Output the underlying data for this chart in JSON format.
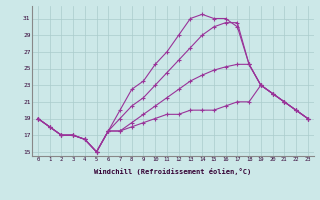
{
  "xlabel": "Windchill (Refroidissement éolien,°C)",
  "bg_color": "#cce8e8",
  "line_color": "#993399",
  "grid_color": "#aacccc",
  "xlim": [
    -0.5,
    23.5
  ],
  "ylim": [
    14.5,
    32.5
  ],
  "xticks": [
    0,
    1,
    2,
    3,
    4,
    5,
    6,
    7,
    8,
    9,
    10,
    11,
    12,
    13,
    14,
    15,
    16,
    17,
    18,
    19,
    20,
    21,
    22,
    23
  ],
  "yticks": [
    15,
    17,
    19,
    21,
    23,
    25,
    27,
    29,
    31
  ],
  "series": [
    [
      19,
      18,
      17,
      17,
      16.5,
      15,
      17.5,
      17.5,
      18.5,
      19.5,
      20.5,
      21.5,
      22.5,
      23.5,
      24.2,
      24.8,
      25.2,
      25.5,
      25.5,
      23,
      22,
      21,
      20,
      19
    ],
    [
      19,
      18,
      17,
      17,
      16.5,
      15,
      17.5,
      20,
      22.5,
      23.5,
      25.5,
      27,
      29,
      31,
      31.5,
      31,
      31,
      30,
      25.5,
      23,
      22,
      21,
      20,
      19
    ],
    [
      19,
      18,
      17,
      17,
      16.5,
      15,
      17.5,
      19,
      20.5,
      21.5,
      23,
      24.5,
      26,
      27.5,
      29,
      30,
      30.5,
      30.5,
      25.5,
      23,
      22,
      21,
      20,
      19
    ],
    [
      19,
      18,
      17,
      17,
      16.5,
      15,
      17.5,
      17.5,
      18,
      18.5,
      19,
      19.5,
      19.5,
      20,
      20,
      20,
      20.5,
      21,
      21,
      23,
      22,
      21,
      20,
      19
    ]
  ]
}
